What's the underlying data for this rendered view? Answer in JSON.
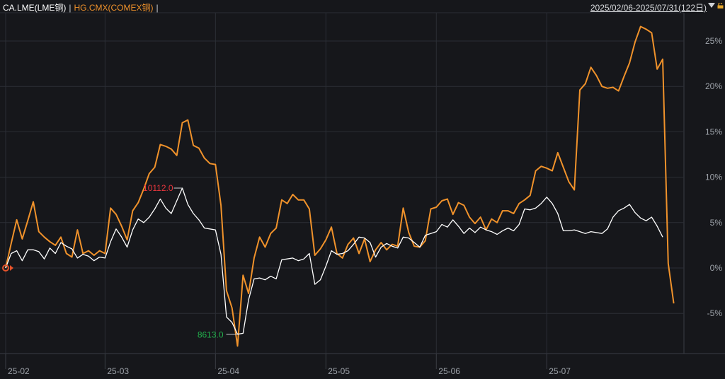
{
  "header": {
    "series1_label": "CA.LME(LME铜)",
    "separator": "|",
    "series2_label": "HG.CMX(COMEX铜)",
    "separator2": "|",
    "date_range": "2025/02/06-2025/07/31(122日)"
  },
  "annotations": {
    "high_label": "10112.0",
    "low_label": "8613.0"
  },
  "colors": {
    "background": "#16171b",
    "grid": "#2b2e35",
    "lme": "#ffffff",
    "cmx": "#f0922b",
    "high": "#e8363d",
    "low": "#22b14c",
    "axis_text": "#9ea3aa"
  },
  "chart_data": {
    "type": "line",
    "title": "",
    "xlabel": "",
    "ylabel": "",
    "y_unit": "%",
    "ylim": [
      -9.5,
      28
    ],
    "y_ticks": [
      -5,
      0,
      5,
      10,
      15,
      20,
      25
    ],
    "y_tick_labels": [
      "-5%",
      "0%",
      "5%",
      "10%",
      "15%",
      "20%",
      "25%"
    ],
    "x_tick_labels": [
      {
        "label": "25-02",
        "index": 0
      },
      {
        "label": "25-03",
        "index": 18
      },
      {
        "label": "25-04",
        "index": 38
      },
      {
        "label": "25-05",
        "index": 58
      },
      {
        "label": "25-06",
        "index": 78
      },
      {
        "label": "25-07",
        "index": 98
      }
    ],
    "grid": true,
    "legend": "top-left",
    "series": [
      {
        "name": "CA.LME(LME铜)",
        "values": [
          0,
          1.6,
          1.9,
          0.8,
          2.0,
          2.0,
          1.8,
          1.0,
          2.2,
          1.6,
          2.8,
          2.4,
          2.1,
          1.1,
          1.5,
          1.3,
          0.8,
          1.2,
          1.1,
          2.9,
          4.3,
          3.4,
          2.3,
          4.2,
          5.4,
          5.0,
          5.6,
          6.5,
          7.6,
          6.6,
          6.0,
          7.4,
          8.8,
          7.0,
          6.0,
          5.3,
          4.4,
          4.3,
          4.2,
          1.5,
          -5.4,
          -6.0,
          -7.3,
          -7.2,
          -3.5,
          -1.2,
          -1.1,
          -1.3,
          -0.9,
          -1.2,
          0.9,
          1.0,
          1.1,
          0.8,
          1.0,
          1.6,
          -1.8,
          -1.3,
          0.2,
          1.9,
          1.5,
          1.6,
          1.9,
          2.6,
          3.4,
          3.3,
          2.8,
          1.2,
          2.3,
          2.7,
          2.4,
          2.2,
          3.4,
          3.3,
          2.8,
          2.3,
          3.6,
          3.8,
          4.0,
          4.8,
          4.5,
          5.3,
          4.6,
          3.8,
          4.4,
          3.9,
          4.5,
          4.2,
          4.0,
          3.7,
          4.1,
          4.4,
          4.1,
          4.8,
          6.5,
          6.4,
          6.6,
          7.1,
          7.8,
          7.1,
          6.0,
          4.1,
          4.1,
          4.2,
          4.0,
          3.8,
          4.0,
          3.9,
          3.8,
          4.3,
          5.6,
          6.3,
          6.6,
          7.0,
          6.1,
          5.5,
          5.2,
          5.6,
          4.6,
          3.4
        ]
      },
      {
        "name": "HG.CMX(COMEX铜)",
        "values": [
          0,
          2.7,
          5.3,
          3.2,
          5.2,
          7.3,
          4.0,
          3.4,
          2.9,
          2.5,
          3.4,
          1.6,
          1.2,
          4.2,
          1.6,
          1.9,
          1.4,
          1.9,
          1.6,
          6.6,
          5.9,
          4.6,
          3.1,
          6.3,
          7.2,
          8.7,
          10.4,
          11.1,
          13.6,
          13.4,
          13.1,
          12.4,
          16.0,
          16.3,
          13.5,
          13.2,
          12.1,
          11.5,
          11.4,
          6.9,
          -2.5,
          -4.4,
          -8.6,
          -0.8,
          -2.8,
          1.1,
          3.4,
          2.3,
          3.8,
          4.4,
          7.5,
          7.1,
          8.1,
          7.5,
          7.5,
          6.5,
          1.4,
          2.1,
          3.1,
          4.5,
          1.6,
          1.1,
          2.6,
          3.3,
          1.6,
          3.2,
          0.7,
          2.0,
          2.8,
          2.0,
          2.6,
          2.4,
          6.6,
          3.9,
          2.4,
          2.3,
          3.0,
          6.5,
          6.7,
          7.4,
          7.6,
          5.9,
          7.2,
          6.9,
          5.6,
          4.9,
          5.6,
          4.2,
          5.4,
          5.0,
          6.3,
          6.3,
          6.0,
          7.1,
          7.5,
          8.0,
          10.7,
          11.2,
          11.0,
          10.7,
          12.7,
          11.1,
          9.5,
          8.6,
          19.6,
          20.3,
          22.1,
          21.2,
          20.0,
          19.8,
          19.9,
          19.5,
          21.1,
          22.6,
          24.9,
          26.6,
          26.3,
          25.9,
          21.9,
          23.0,
          0.5,
          -3.9
        ]
      }
    ]
  }
}
